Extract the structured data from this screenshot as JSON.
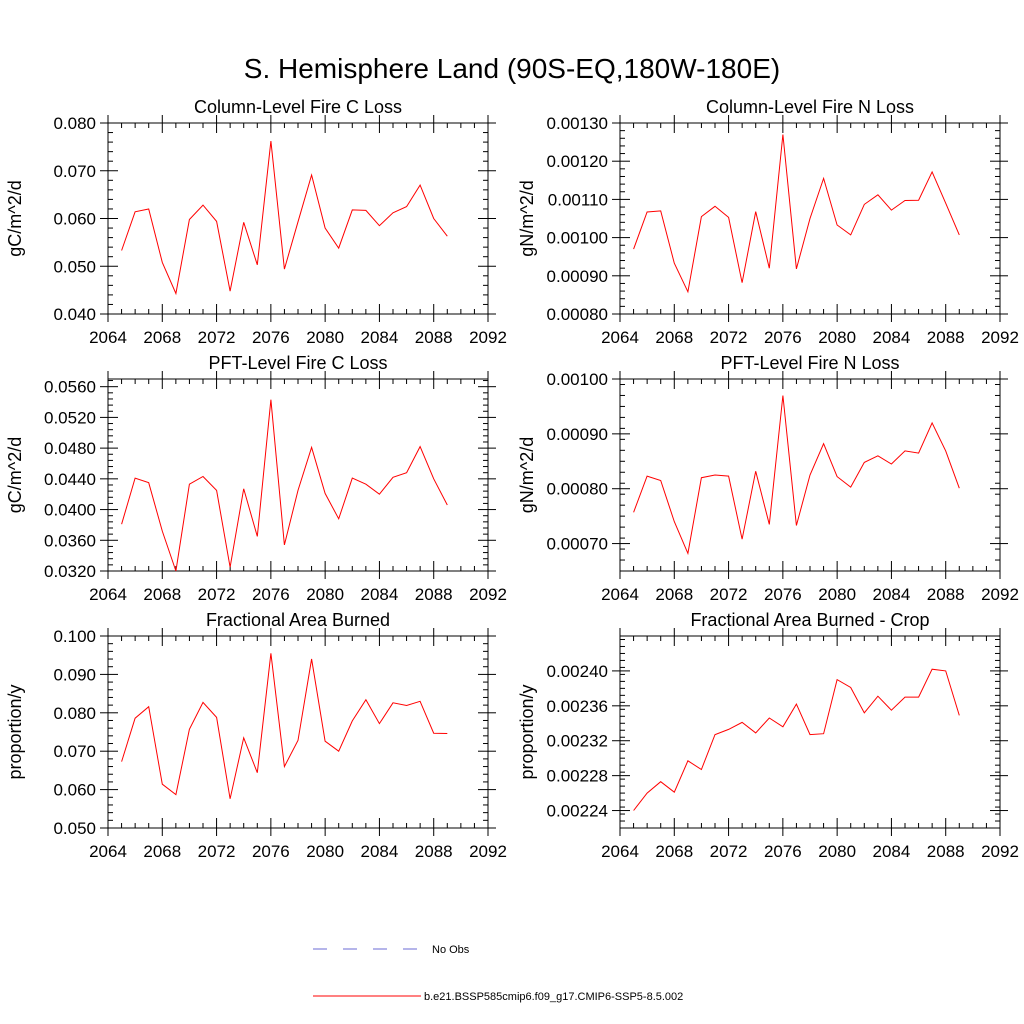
{
  "main_title": "S. Hemisphere Land (90S-EQ,180W-180E)",
  "legend": {
    "entries": [
      {
        "label": "No Obs",
        "color": "#6b6bd6",
        "dash": true
      },
      {
        "label": "b.e21.BSSP585cmip6.f09_g17.CMIP6-SSP5-8.5.002",
        "color": "#ff0000",
        "dash": false
      }
    ]
  },
  "chart_data": [
    {
      "type": "line",
      "title": "Column-Level Fire C Loss",
      "ylabel": "gC/m^2/d",
      "xlim": [
        2064,
        2092
      ],
      "ylim": [
        0.04,
        0.08
      ],
      "xticks": [
        "2064",
        "2068",
        "2072",
        "2076",
        "2080",
        "2084",
        "2088",
        "2092"
      ],
      "yticks": [
        "0.040",
        "0.050",
        "0.060",
        "0.070",
        "0.080"
      ],
      "x": [
        2065,
        2066,
        2067,
        2068,
        2069,
        2070,
        2071,
        2072,
        2073,
        2074,
        2075,
        2076,
        2077,
        2078,
        2079,
        2080,
        2081,
        2082,
        2083,
        2084,
        2085,
        2086,
        2087,
        2088,
        2089
      ],
      "series": [
        {
          "values": [
            0.0533,
            0.0614,
            0.062,
            0.0508,
            0.0443,
            0.0598,
            0.0628,
            0.0594,
            0.0448,
            0.0592,
            0.0503,
            0.0762,
            0.0494,
            0.0593,
            0.0691,
            0.058,
            0.0538,
            0.0618,
            0.0617,
            0.0585,
            0.0612,
            0.0625,
            0.067,
            0.06,
            0.0563
          ],
          "color": "#ff0000"
        }
      ]
    },
    {
      "type": "line",
      "title": "Column-Level Fire N Loss",
      "ylabel": "gN/m^2/d",
      "xlim": [
        2064,
        2092
      ],
      "ylim": [
        0.0008,
        0.0013
      ],
      "xticks": [
        "2064",
        "2068",
        "2072",
        "2076",
        "2080",
        "2084",
        "2088",
        "2092"
      ],
      "yticks": [
        "0.00080",
        "0.00090",
        "0.00100",
        "0.00110",
        "0.00120",
        "0.00130"
      ],
      "x": [
        2065,
        2066,
        2067,
        2068,
        2069,
        2070,
        2071,
        2072,
        2073,
        2074,
        2075,
        2076,
        2077,
        2078,
        2079,
        2080,
        2081,
        2082,
        2083,
        2084,
        2085,
        2086,
        2087,
        2088,
        2089
      ],
      "series": [
        {
          "values": [
            0.00097,
            0.001067,
            0.00107,
            0.000933,
            0.000858,
            0.001055,
            0.001082,
            0.001053,
            0.000882,
            0.001068,
            0.00092,
            0.00127,
            0.000918,
            0.00105,
            0.001155,
            0.001033,
            0.001007,
            0.001087,
            0.001112,
            0.001072,
            0.001097,
            0.001098,
            0.001172,
            0.00109,
            0.001007
          ],
          "color": "#ff0000"
        }
      ]
    },
    {
      "type": "line",
      "title": "PFT-Level Fire C Loss",
      "ylabel": "gC/m^2/d",
      "xlim": [
        2064,
        2092
      ],
      "ylim": [
        0.032,
        0.057
      ],
      "xticks": [
        "2064",
        "2068",
        "2072",
        "2076",
        "2080",
        "2084",
        "2088",
        "2092"
      ],
      "yticks": [
        "0.0320",
        "0.0360",
        "0.0400",
        "0.0440",
        "0.0480",
        "0.0520",
        "0.0560"
      ],
      "x": [
        2065,
        2066,
        2067,
        2068,
        2069,
        2070,
        2071,
        2072,
        2073,
        2074,
        2075,
        2076,
        2077,
        2078,
        2079,
        2080,
        2081,
        2082,
        2083,
        2084,
        2085,
        2086,
        2087,
        2088,
        2089
      ],
      "series": [
        {
          "values": [
            0.0381,
            0.0441,
            0.0435,
            0.0372,
            0.032,
            0.0433,
            0.0443,
            0.0425,
            0.0325,
            0.0427,
            0.0365,
            0.0543,
            0.0354,
            0.0425,
            0.0481,
            0.0421,
            0.0388,
            0.0441,
            0.0433,
            0.042,
            0.0442,
            0.0448,
            0.0482,
            0.044,
            0.0406
          ],
          "color": "#ff0000"
        }
      ]
    },
    {
      "type": "line",
      "title": "PFT-Level Fire N Loss",
      "ylabel": "gN/m^2/d",
      "xlim": [
        2064,
        2092
      ],
      "ylim": [
        0.00065,
        0.001
      ],
      "xticks": [
        "2064",
        "2068",
        "2072",
        "2076",
        "2080",
        "2084",
        "2088",
        "2092"
      ],
      "yticks": [
        "0.00070",
        "0.00080",
        "0.00090",
        "0.00100"
      ],
      "x": [
        2065,
        2066,
        2067,
        2068,
        2069,
        2070,
        2071,
        2072,
        2073,
        2074,
        2075,
        2076,
        2077,
        2078,
        2079,
        2080,
        2081,
        2082,
        2083,
        2084,
        2085,
        2086,
        2087,
        2088,
        2089
      ],
      "series": [
        {
          "values": [
            0.000757,
            0.000823,
            0.000815,
            0.00074,
            0.000682,
            0.00082,
            0.000825,
            0.000823,
            0.000708,
            0.000832,
            0.000735,
            0.00097,
            0.000733,
            0.000825,
            0.000882,
            0.000822,
            0.000803,
            0.000848,
            0.00086,
            0.000845,
            0.000869,
            0.000865,
            0.00092,
            0.000869,
            0.000801
          ],
          "color": "#ff0000"
        }
      ]
    },
    {
      "type": "line",
      "title": "Fractional Area Burned",
      "ylabel": "proportion/y",
      "xlim": [
        2064,
        2092
      ],
      "ylim": [
        0.05,
        0.1
      ],
      "xticks": [
        "2064",
        "2068",
        "2072",
        "2076",
        "2080",
        "2084",
        "2088",
        "2092"
      ],
      "yticks": [
        "0.050",
        "0.060",
        "0.070",
        "0.080",
        "0.090",
        "0.100"
      ],
      "x": [
        2065,
        2066,
        2067,
        2068,
        2069,
        2070,
        2071,
        2072,
        2073,
        2074,
        2075,
        2076,
        2077,
        2078,
        2079,
        2080,
        2081,
        2082,
        2083,
        2084,
        2085,
        2086,
        2087,
        2088,
        2089
      ],
      "series": [
        {
          "values": [
            0.0673,
            0.0786,
            0.0816,
            0.0614,
            0.0587,
            0.0757,
            0.0827,
            0.0788,
            0.0576,
            0.0735,
            0.0644,
            0.0955,
            0.066,
            0.0728,
            0.094,
            0.0726,
            0.07,
            0.0779,
            0.0834,
            0.0772,
            0.0826,
            0.0819,
            0.083,
            0.0747,
            0.0746
          ],
          "color": "#ff0000"
        }
      ]
    },
    {
      "type": "line",
      "title": "Fractional Area Burned - Crop",
      "ylabel": "proportion/y",
      "xlim": [
        2064,
        2092
      ],
      "ylim": [
        0.00222,
        0.00244
      ],
      "xticks": [
        "2064",
        "2068",
        "2072",
        "2076",
        "2080",
        "2084",
        "2088",
        "2092"
      ],
      "yticks": [
        "0.00224",
        "0.00228",
        "0.00232",
        "0.00236",
        "0.00240"
      ],
      "x": [
        2065,
        2066,
        2067,
        2068,
        2069,
        2070,
        2071,
        2072,
        2073,
        2074,
        2075,
        2076,
        2077,
        2078,
        2079,
        2080,
        2081,
        2082,
        2083,
        2084,
        2085,
        2086,
        2087,
        2088,
        2089
      ],
      "series": [
        {
          "values": [
            0.00224,
            0.00226,
            0.002273,
            0.002261,
            0.002297,
            0.002287,
            0.002327,
            0.002333,
            0.002341,
            0.002329,
            0.002346,
            0.002336,
            0.002362,
            0.002327,
            0.002328,
            0.00239,
            0.002381,
            0.002352,
            0.002371,
            0.002355,
            0.00237,
            0.00237,
            0.002402,
            0.0024,
            0.002349
          ],
          "color": "#ff0000"
        }
      ]
    }
  ]
}
